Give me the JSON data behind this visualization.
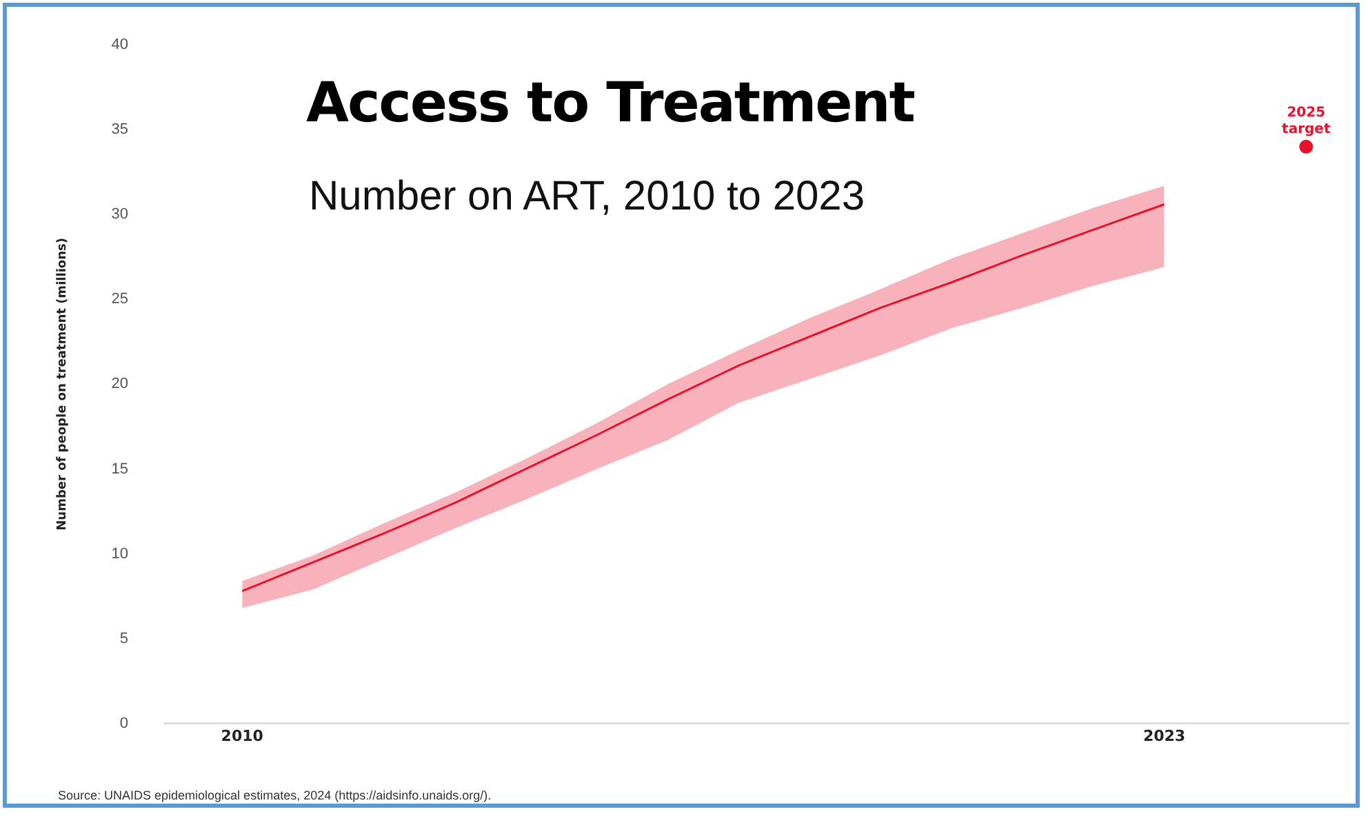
{
  "chart_data": {
    "type": "line",
    "title": "Access to Treatment",
    "subtitle": "Number on ART, 2010 to 2023",
    "ylabel": "Number of people on treatment (millions)",
    "x": [
      2010,
      2011,
      2012,
      2013,
      2014,
      2015,
      2016,
      2017,
      2018,
      2019,
      2020,
      2021,
      2022,
      2023
    ],
    "series": [
      {
        "color": "#e8112d",
        "values": [
          7.8,
          9.5,
          11.2,
          13.0,
          15.0,
          17.0,
          19.1,
          21.1,
          22.8,
          24.5,
          26.0,
          27.6,
          29.1,
          30.6
        ],
        "lower": [
          6.8,
          7.9,
          9.7,
          11.5,
          13.2,
          15.0,
          16.7,
          18.9,
          20.3,
          21.7,
          23.3,
          24.5,
          25.8,
          26.9
        ],
        "upper": [
          8.4,
          9.9,
          11.8,
          13.6,
          15.6,
          17.7,
          20.0,
          22.0,
          23.9,
          25.6,
          27.4,
          28.9,
          30.4,
          31.7
        ]
      },
      {
        "type": "scatter",
        "color": "#e8112d",
        "x": [
          2025
        ],
        "values": [
          34
        ]
      }
    ],
    "xlim": [
      2008.9,
      2025.6
    ],
    "xticks": [
      2010,
      2023
    ],
    "ylim": [
      0,
      40
    ],
    "yticks": [
      0,
      5,
      10,
      15,
      20,
      25,
      30,
      35,
      40
    ],
    "grid": false,
    "legend": false,
    "line_style": "solid",
    "annotations": [
      {
        "text": "2025 target",
        "x": 2025,
        "y": 34
      },
      "Source: UNAIDS epidemiological estimates, 2024 (https://aidsinfo.unaids.org/)."
    ]
  }
}
